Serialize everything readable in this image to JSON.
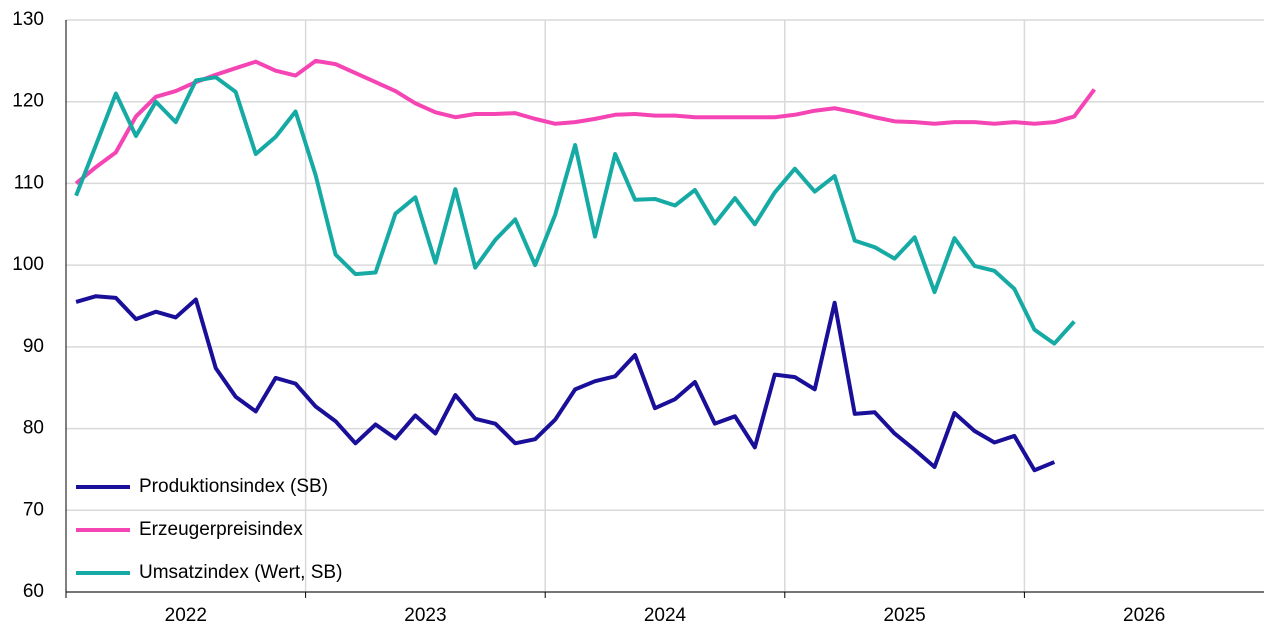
{
  "chart_data": {
    "type": "line",
    "x": [
      2022.042,
      2022.125,
      2022.208,
      2022.292,
      2022.375,
      2022.458,
      2022.542,
      2022.625,
      2022.708,
      2022.792,
      2022.875,
      2022.958,
      2023.042,
      2023.125,
      2023.208,
      2023.292,
      2023.375,
      2023.458,
      2023.542,
      2023.625,
      2023.708,
      2023.792,
      2023.875,
      2023.958,
      2024.042,
      2024.125,
      2024.208,
      2024.292,
      2024.375,
      2024.458,
      2024.542,
      2024.625,
      2024.708,
      2024.792,
      2024.875,
      2024.958,
      2025.042,
      2025.125,
      2025.208,
      2025.292,
      2025.375,
      2025.458,
      2025.542,
      2025.625,
      2025.708,
      2025.792,
      2025.875,
      2025.958,
      2026.042,
      2026.125,
      2026.208,
      2026.292
    ],
    "series": [
      {
        "name": "Produktionsindex (SB)",
        "color": "#1a0f99",
        "values": [
          95.5,
          96.2,
          96,
          93.4,
          94.3,
          93.6,
          95.8,
          87.4,
          83.9,
          82.1,
          86.2,
          85.5,
          82.7,
          80.9,
          78.2,
          80.5,
          78.8,
          81.6,
          79.4,
          84.1,
          81.2,
          80.6,
          78.2,
          78.7,
          81.1,
          84.8,
          85.8,
          86.4,
          89,
          82.5,
          83.6,
          85.7,
          80.6,
          81.5,
          77.7,
          86.6,
          86.3,
          84.8,
          95.4,
          81.8,
          82,
          79.4,
          77.4,
          75.3,
          81.9,
          79.7,
          78.3,
          79.1,
          74.9,
          75.9,
          null,
          null
        ]
      },
      {
        "name": "Erzeugerpreisindex",
        "color": "#f545b5",
        "values": [
          110,
          112,
          113.8,
          118.2,
          120.6,
          121.3,
          122.4,
          123.3,
          124.1,
          124.9,
          123.8,
          123.2,
          125,
          124.6,
          123.5,
          122.4,
          121.3,
          119.8,
          118.7,
          118.1,
          118.5,
          118.5,
          118.6,
          117.9,
          117.3,
          117.5,
          117.9,
          118.4,
          118.5,
          118.3,
          118.3,
          118.1,
          118.1,
          118.1,
          118.1,
          118.1,
          118.4,
          118.9,
          119.2,
          118.7,
          118.1,
          117.6,
          117.5,
          117.3,
          117.5,
          117.5,
          117.3,
          117.5,
          117.3,
          117.5,
          118.2,
          121.5
        ]
      },
      {
        "name": "Umsatzindex (Wert, SB)",
        "color": "#16aaa5",
        "values": [
          108.5,
          114.7,
          121,
          115.8,
          120,
          117.5,
          122.6,
          123,
          121.2,
          113.6,
          115.7,
          118.8,
          111,
          101.3,
          98.9,
          99.1,
          106.3,
          108.3,
          100.3,
          109.3,
          99.7,
          103.1,
          105.6,
          100,
          106.2,
          114.7,
          103.5,
          113.6,
          108,
          108.1,
          107.3,
          109.2,
          105.1,
          108.2,
          105,
          108.9,
          111.8,
          109,
          110.9,
          103,
          102.2,
          100.8,
          103.4,
          96.7,
          103.3,
          99.9,
          99.3,
          97.1,
          92.1,
          90.4,
          93.1,
          null
        ]
      }
    ],
    "xlim": [
      2022,
      2027
    ],
    "xticks": [
      2022,
      2023,
      2024,
      2025,
      2026
    ],
    "ylim": [
      60,
      130
    ],
    "yticks": [
      60,
      70,
      80,
      90,
      100,
      110,
      120,
      130
    ],
    "grid": true,
    "legend": "lower-left"
  }
}
